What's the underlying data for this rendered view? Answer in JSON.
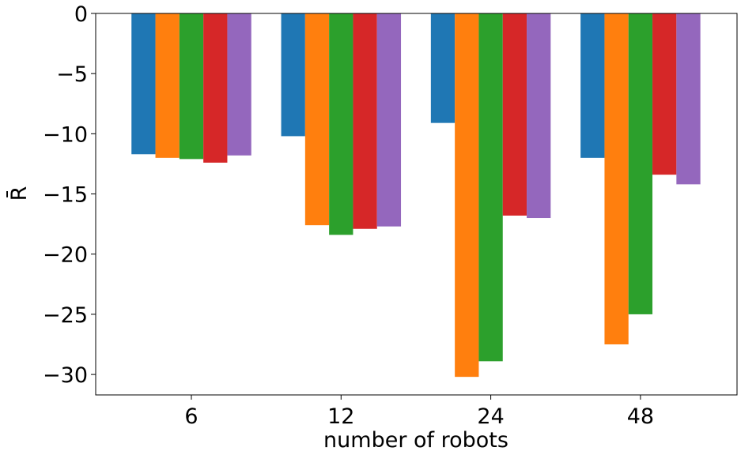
{
  "chart_data": {
    "type": "bar",
    "title": "",
    "xlabel": "number of robots",
    "ylabel": "R̄",
    "categories": [
      "6",
      "12",
      "24",
      "48"
    ],
    "series": [
      {
        "color": "#1f77b4",
        "values": [
          -11.7,
          -10.2,
          -9.1,
          -12.0
        ]
      },
      {
        "color": "#ff7f0e",
        "values": [
          -12.0,
          -17.6,
          -30.2,
          -27.5
        ]
      },
      {
        "color": "#2ca02c",
        "values": [
          -12.1,
          -18.4,
          -28.9,
          -25.0
        ]
      },
      {
        "color": "#d62728",
        "values": [
          -12.4,
          -17.9,
          -16.8,
          -13.4
        ]
      },
      {
        "color": "#9467bd",
        "values": [
          -11.8,
          -17.7,
          -17.0,
          -14.2
        ]
      }
    ],
    "yticks": [
      0,
      -5,
      -10,
      -15,
      -20,
      -25,
      -30
    ],
    "ylim": [
      -31.7,
      0
    ],
    "grid": false,
    "legend": "none"
  }
}
